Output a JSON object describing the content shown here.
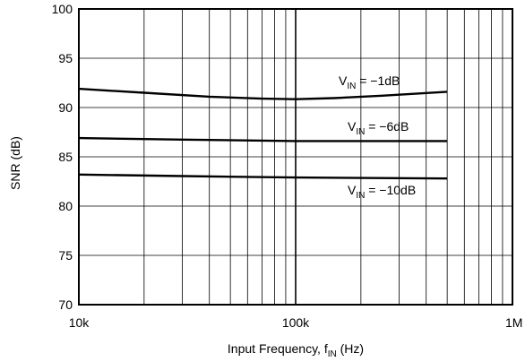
{
  "chart_data": {
    "type": "line",
    "title": "",
    "xlabel": {
      "text": "Input Frequency, f",
      "sub": "IN",
      "suffix": " (Hz)"
    },
    "ylabel": "SNR (dB)",
    "x_scale": "log",
    "xlim": [
      10000,
      1000000
    ],
    "ylim": [
      70,
      100
    ],
    "x_ticks": [
      {
        "value": 10000,
        "label": "10k"
      },
      {
        "value": 100000,
        "label": "100k"
      },
      {
        "value": 1000000,
        "label": "1M"
      }
    ],
    "y_ticks": [
      {
        "value": 70,
        "label": "70"
      },
      {
        "value": 75,
        "label": "75"
      },
      {
        "value": 80,
        "label": "80"
      },
      {
        "value": 85,
        "label": "85"
      },
      {
        "value": 90,
        "label": "90"
      },
      {
        "value": 95,
        "label": "95"
      },
      {
        "value": 100,
        "label": "100"
      }
    ],
    "grid": true,
    "series": [
      {
        "name": "V_IN = −1dB",
        "label": {
          "main": "V",
          "sub": "IN",
          "rest": " = −1dB"
        },
        "points": [
          [
            10000,
            91.9
          ],
          [
            20000,
            91.5
          ],
          [
            40000,
            91.1
          ],
          [
            70000,
            90.9
          ],
          [
            100000,
            90.85
          ],
          [
            150000,
            90.95
          ],
          [
            250000,
            91.2
          ],
          [
            500000,
            91.6
          ]
        ]
      },
      {
        "name": "V_IN = −6dB",
        "label": {
          "main": "V",
          "sub": "IN",
          "rest": " = −6dB"
        },
        "points": [
          [
            10000,
            86.9
          ],
          [
            30000,
            86.75
          ],
          [
            100000,
            86.6
          ],
          [
            500000,
            86.6
          ]
        ]
      },
      {
        "name": "V_IN = −10dB",
        "label": {
          "main": "V",
          "sub": "IN",
          "rest": " = −10dB"
        },
        "points": [
          [
            10000,
            83.2
          ],
          [
            30000,
            83.05
          ],
          [
            100000,
            82.9
          ],
          [
            500000,
            82.8
          ]
        ]
      }
    ]
  }
}
